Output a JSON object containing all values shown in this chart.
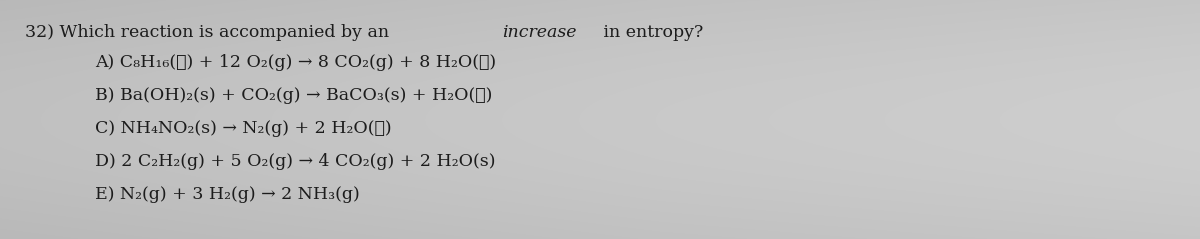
{
  "background_color_top": "#c8c8c8",
  "background_color_mid": "#b8b8b8",
  "background_color_bot": "#c0c0c0",
  "fig_width": 12.0,
  "fig_height": 2.39,
  "question_part1": "32) Which reaction is accompanied by an ",
  "question_italic": "increase",
  "question_part3": " in entropy?",
  "options": [
    "A) C₈H₁₆(ℓ) + 12 O₂(g) → 8 CO₂(g) + 8 H₂O(ℓ)",
    "B) Ba(OH)₂(s) + CO₂(g) → BaCO₃(s) + H₂O(ℓ)",
    "C) NH₄NO₂(s) → N₂(g) + 2 H₂O(ℓ)",
    "D) 2 C₂H₂(g) + 5 O₂(g) → 4 CO₂(g) + 2 H₂O(s)",
    "E) N₂(g) + 3 H₂(g) → 2 NH₃(g)"
  ],
  "font_size": 12.5,
  "text_color": "#1c1c1c",
  "question_x_data": 25,
  "question_y_data": 215,
  "options_x_data": 95,
  "options_y_start_data": 185,
  "options_y_step_data": 33,
  "xlim": [
    0,
    1200
  ],
  "ylim": [
    0,
    239
  ]
}
